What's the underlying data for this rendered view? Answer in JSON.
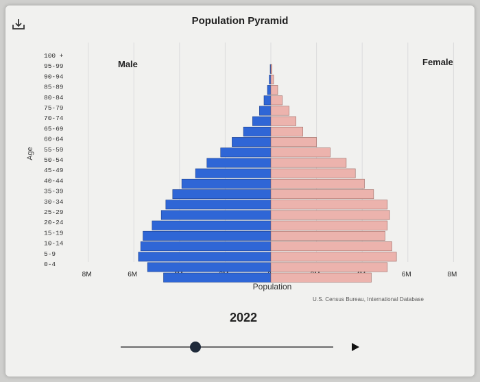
{
  "header": {
    "title": "Population Pyramid",
    "download_icon": "download-icon"
  },
  "footer": {
    "year": "2022",
    "source": "U.S. Census Bureau, International Database",
    "slider_position": 0.35,
    "play_icon": "play-icon"
  },
  "colors": {
    "male": "#2f66d6",
    "female": "#ecb3ad",
    "gridline": "#dcdcdc"
  },
  "chart_data": {
    "type": "bar",
    "orientation": "horizontal",
    "title": "Population Pyramid",
    "xlabel": "Population",
    "ylabel": "Age",
    "xlim": [
      -8000000,
      8000000
    ],
    "x_ticks": [
      "8M",
      "6M",
      "4M",
      "2M",
      "0",
      "2M",
      "4M",
      "6M",
      "8M"
    ],
    "grid": true,
    "legend": [
      "Male",
      "Female"
    ],
    "categories": [
      "100 +",
      "95-99",
      "90-94",
      "85-89",
      "80-84",
      "75-79",
      "70-74",
      "65-69",
      "60-64",
      "55-59",
      "50-54",
      "45-49",
      "40-44",
      "35-39",
      "30-34",
      "25-29",
      "20-24",
      "15-19",
      "10-14",
      "5-9",
      "0-4"
    ],
    "series": [
      {
        "name": "Male",
        "values": [
          0.03,
          0.07,
          0.15,
          0.3,
          0.5,
          0.8,
          1.2,
          1.7,
          2.2,
          2.8,
          3.3,
          3.9,
          4.3,
          4.6,
          4.8,
          5.2,
          5.6,
          5.7,
          5.8,
          5.4,
          4.7
        ]
      },
      {
        "name": "Female",
        "values": [
          0.05,
          0.12,
          0.3,
          0.5,
          0.8,
          1.1,
          1.4,
          2.0,
          2.6,
          3.3,
          3.7,
          4.1,
          4.5,
          5.1,
          5.2,
          5.1,
          5.0,
          5.3,
          5.5,
          5.1,
          4.4
        ]
      }
    ],
    "units": "millions"
  }
}
